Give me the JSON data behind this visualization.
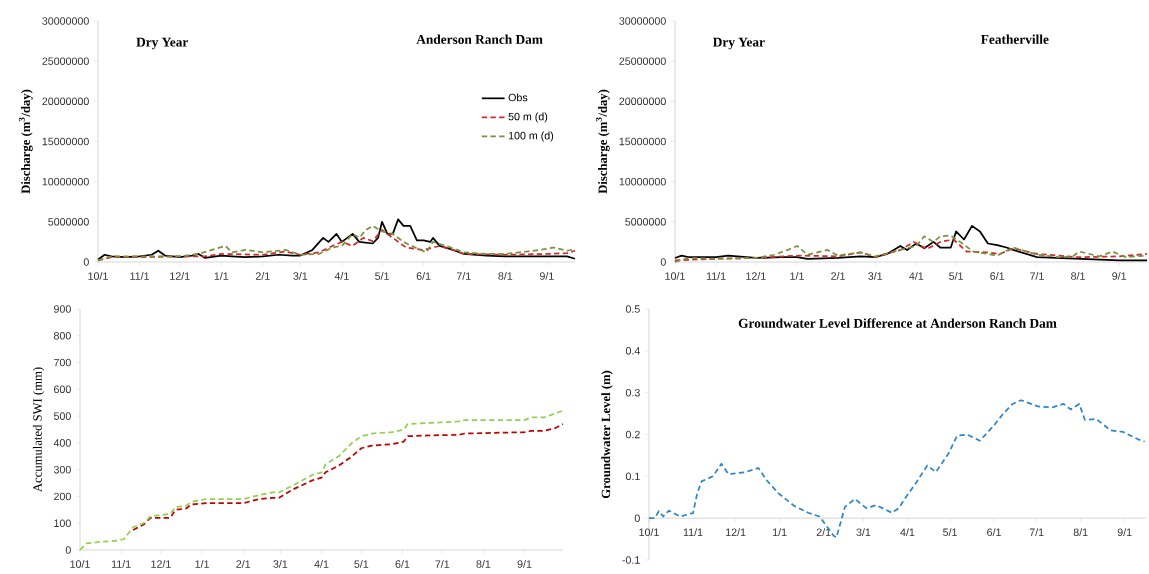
{
  "chart_data": [
    {
      "type": "line",
      "title": "Anderson Ranch Dam",
      "annotations": [
        "Dry Year"
      ],
      "ylabel": "Discharge (m$^{3}$/day)",
      "xlim": [
        "2000-10-01",
        "2001-09-22"
      ],
      "ylim": [
        0,
        30000000
      ],
      "yticks": [
        0,
        5000000,
        10000000,
        15000000,
        20000000,
        25000000,
        30000000
      ],
      "xticks": [
        {
          "value": "2000-10-01",
          "label": "10/1"
        },
        {
          "value": "2000-11-01",
          "label": "11/1"
        },
        {
          "value": "2000-12-01",
          "label": "12/1"
        },
        {
          "value": "2001-01-01",
          "label": "1/1"
        },
        {
          "value": "2001-02-01",
          "label": "2/1"
        },
        {
          "value": "2001-03-01",
          "label": "3/1"
        },
        {
          "value": "2001-04-01",
          "label": "4/1"
        },
        {
          "value": "2001-05-01",
          "label": "5/1"
        },
        {
          "value": "2001-06-01",
          "label": "6/1"
        },
        {
          "value": "2001-07-01",
          "label": "7/1"
        },
        {
          "value": "2001-08-01",
          "label": "8/1"
        },
        {
          "value": "2001-09-01",
          "label": "9/1"
        }
      ],
      "legend": "right",
      "series": [
        {
          "name": "Obs",
          "color": "#000000",
          "line_style": "solid",
          "x": [
            "2000-10-01",
            "2000-10-06",
            "2000-10-11",
            "2000-10-21",
            "2000-11-01",
            "2000-11-10",
            "2000-11-15",
            "2000-11-20",
            "2000-12-01",
            "2000-12-10",
            "2000-12-15",
            "2000-12-20",
            "2001-01-01",
            "2001-01-09",
            "2001-01-19",
            "2001-02-01",
            "2001-02-13",
            "2001-02-23",
            "2001-03-01",
            "2001-03-10",
            "2001-03-18",
            "2001-03-22",
            "2001-03-28",
            "2001-04-01",
            "2001-04-09",
            "2001-04-14",
            "2001-04-24",
            "2001-04-28",
            "2001-05-01",
            "2001-05-05",
            "2001-05-09",
            "2001-05-13",
            "2001-05-17",
            "2001-05-22",
            "2001-05-27",
            "2001-06-01",
            "2001-06-06",
            "2001-06-08",
            "2001-06-13",
            "2001-06-23",
            "2001-07-01",
            "2001-07-18",
            "2001-08-01",
            "2001-08-17",
            "2001-09-01",
            "2001-09-16",
            "2001-09-22"
          ],
          "values": [
            300000,
            900000,
            700000,
            600000,
            700000,
            900000,
            1400000,
            800000,
            600000,
            800000,
            1000000,
            500000,
            800000,
            700000,
            600000,
            700000,
            900000,
            800000,
            800000,
            1500000,
            3000000,
            2500000,
            3500000,
            2500000,
            3500000,
            2500000,
            2300000,
            3000000,
            5000000,
            3500000,
            3500000,
            5300000,
            4500000,
            4500000,
            2700000,
            2700000,
            2500000,
            3000000,
            2000000,
            1500000,
            1000000,
            800000,
            700000,
            700000,
            700000,
            700000,
            400000
          ]
        },
        {
          "name": "50 m (d)",
          "color": "#d42a2a",
          "line_style": "dashed",
          "x": [
            "2000-10-01",
            "2000-10-11",
            "2000-11-01",
            "2000-12-01",
            "2000-12-20",
            "2001-01-01",
            "2001-02-01",
            "2001-02-18",
            "2001-03-01",
            "2001-03-15",
            "2001-03-25",
            "2001-04-01",
            "2001-04-09",
            "2001-04-17",
            "2001-04-24",
            "2001-05-01",
            "2001-05-09",
            "2001-05-19",
            "2001-06-01",
            "2001-06-13",
            "2001-06-23",
            "2001-07-01",
            "2001-08-01",
            "2001-09-01",
            "2001-09-16",
            "2001-09-22"
          ],
          "values": [
            200000,
            600000,
            600000,
            700000,
            700000,
            1000000,
            900000,
            1300000,
            900000,
            1200000,
            2000000,
            2500000,
            2000000,
            3000000,
            2600000,
            4000000,
            3000000,
            1800000,
            1500000,
            2000000,
            1500000,
            1000000,
            900000,
            1000000,
            1100000,
            1400000
          ]
        },
        {
          "name": "100 m (d)",
          "color": "#77933c",
          "line_style": "dashed",
          "x": [
            "2000-10-01",
            "2000-10-11",
            "2000-11-01",
            "2000-12-01",
            "2000-12-15",
            "2000-12-25",
            "2001-01-04",
            "2001-01-09",
            "2001-01-19",
            "2001-02-01",
            "2001-02-18",
            "2001-03-01",
            "2001-03-15",
            "2001-03-25",
            "2001-04-01",
            "2001-04-09",
            "2001-04-14",
            "2001-04-19",
            "2001-04-24",
            "2001-05-01",
            "2001-05-09",
            "2001-05-17",
            "2001-05-27",
            "2001-06-03",
            "2001-06-08",
            "2001-06-18",
            "2001-07-01",
            "2001-07-18",
            "2001-08-01",
            "2001-08-17",
            "2001-08-27",
            "2001-09-06",
            "2001-09-16",
            "2001-09-22"
          ],
          "values": [
            200000,
            700000,
            700000,
            700000,
            1000000,
            1500000,
            2000000,
            1200000,
            1500000,
            1200000,
            1500000,
            900000,
            1000000,
            1800000,
            2000000,
            3500000,
            3000000,
            4000000,
            4500000,
            3800000,
            3500000,
            2500000,
            1700000,
            1200000,
            2500000,
            2000000,
            1200000,
            1000000,
            1000000,
            1300000,
            1500000,
            1800000,
            1400000,
            1600000
          ]
        }
      ]
    },
    {
      "type": "line",
      "title": "Featherville",
      "annotations": [
        "Dry Year"
      ],
      "ylabel": "Discharge (m$^{3}$/day)",
      "xlim": [
        "2000-10-01",
        "2001-09-22"
      ],
      "ylim": [
        0,
        30000000
      ],
      "yticks": [
        0,
        5000000,
        10000000,
        15000000,
        20000000,
        25000000,
        30000000
      ],
      "xticks": [
        {
          "value": "2000-10-01",
          "label": "10/1"
        },
        {
          "value": "2000-11-01",
          "label": "11/1"
        },
        {
          "value": "2000-12-01",
          "label": "12/1"
        },
        {
          "value": "2001-01-01",
          "label": "1/1"
        },
        {
          "value": "2001-02-01",
          "label": "2/1"
        },
        {
          "value": "2001-03-01",
          "label": "3/1"
        },
        {
          "value": "2001-04-01",
          "label": "4/1"
        },
        {
          "value": "2001-05-01",
          "label": "5/1"
        },
        {
          "value": "2001-06-01",
          "label": "6/1"
        },
        {
          "value": "2001-07-01",
          "label": "7/1"
        },
        {
          "value": "2001-08-01",
          "label": "8/1"
        },
        {
          "value": "2001-09-01",
          "label": "9/1"
        }
      ],
      "series": [
        {
          "color": "#000000",
          "line_style": "solid",
          "x": [
            "2000-10-01",
            "2000-10-06",
            "2000-10-11",
            "2000-11-01",
            "2000-11-10",
            "2000-12-01",
            "2000-12-20",
            "2001-01-01",
            "2001-01-09",
            "2001-02-01",
            "2001-02-18",
            "2001-03-01",
            "2001-03-10",
            "2001-03-15",
            "2001-03-20",
            "2001-03-25",
            "2001-04-01",
            "2001-04-07",
            "2001-04-14",
            "2001-04-19",
            "2001-04-27",
            "2001-05-01",
            "2001-05-07",
            "2001-05-13",
            "2001-05-19",
            "2001-05-25",
            "2001-06-01",
            "2001-06-08",
            "2001-06-13",
            "2001-06-23",
            "2001-07-01",
            "2001-08-01",
            "2001-09-01",
            "2001-09-22"
          ],
          "values": [
            500000,
            800000,
            600000,
            600000,
            800000,
            500000,
            600000,
            600000,
            400000,
            500000,
            700000,
            600000,
            1000000,
            1500000,
            2000000,
            1500000,
            2300000,
            1700000,
            2500000,
            1800000,
            1800000,
            3800000,
            2800000,
            4500000,
            3800000,
            2300000,
            2100000,
            1800000,
            1500000,
            1000000,
            600000,
            400000,
            200000,
            200000
          ]
        },
        {
          "color": "#d42a2a",
          "line_style": "dashed",
          "x": [
            "2000-10-01",
            "2000-11-01",
            "2000-12-01",
            "2001-01-01",
            "2001-02-01",
            "2001-02-18",
            "2001-03-01",
            "2001-03-20",
            "2001-03-30",
            "2001-04-09",
            "2001-04-19",
            "2001-04-29",
            "2001-05-09",
            "2001-05-24",
            "2001-06-03",
            "2001-06-13",
            "2001-07-01",
            "2001-08-01",
            "2001-09-01",
            "2001-09-22"
          ],
          "values": [
            200000,
            400000,
            500000,
            800000,
            700000,
            1200000,
            600000,
            1500000,
            2500000,
            1600000,
            2500000,
            2800000,
            1300000,
            1200000,
            1000000,
            1700000,
            1000000,
            600000,
            700000,
            1000000
          ]
        },
        {
          "color": "#77933c",
          "line_style": "dashed",
          "x": [
            "2000-10-01",
            "2000-10-11",
            "2000-11-01",
            "2000-12-01",
            "2000-12-15",
            "2000-12-25",
            "2001-01-01",
            "2001-01-09",
            "2001-01-24",
            "2001-02-01",
            "2001-02-18",
            "2001-03-01",
            "2001-03-20",
            "2001-04-01",
            "2001-04-07",
            "2001-04-14",
            "2001-04-19",
            "2001-04-27",
            "2001-05-04",
            "2001-05-14",
            "2001-06-01",
            "2001-06-13",
            "2001-06-23",
            "2001-07-01",
            "2001-07-18",
            "2001-07-28",
            "2001-08-02",
            "2001-08-17",
            "2001-08-27",
            "2001-09-06",
            "2001-09-22"
          ],
          "values": [
            0,
            500000,
            400000,
            500000,
            900000,
            1500000,
            2000000,
            900000,
            1500000,
            800000,
            1200000,
            700000,
            1500000,
            2000000,
            3200000,
            2500000,
            3200000,
            3300000,
            2500000,
            1300000,
            800000,
            1800000,
            1300000,
            900000,
            600000,
            700000,
            1300000,
            700000,
            1300000,
            600000,
            800000
          ]
        }
      ]
    },
    {
      "type": "line",
      "ylabel": "Accumulated SWI (mm)",
      "xlim": [
        "2000-10-01",
        "2001-09-30"
      ],
      "ylim": [
        0,
        900
      ],
      "yticks": [
        0,
        100,
        200,
        300,
        400,
        500,
        600,
        700,
        800,
        900
      ],
      "xticks": [
        {
          "value": "2000-10-01",
          "label": "10/1"
        },
        {
          "value": "2000-11-01",
          "label": "11/1"
        },
        {
          "value": "2000-12-01",
          "label": "12/1"
        },
        {
          "value": "2001-01-01",
          "label": "1/1"
        },
        {
          "value": "2001-02-01",
          "label": "2/1"
        },
        {
          "value": "2001-03-01",
          "label": "3/1"
        },
        {
          "value": "2001-04-01",
          "label": "4/1"
        },
        {
          "value": "2001-05-01",
          "label": "5/1"
        },
        {
          "value": "2001-06-01",
          "label": "6/1"
        },
        {
          "value": "2001-07-01",
          "label": "7/1"
        },
        {
          "value": "2001-08-01",
          "label": "8/1"
        },
        {
          "value": "2001-09-01",
          "label": "9/1"
        }
      ],
      "series": [
        {
          "color": "#c00000",
          "line_style": "dashed",
          "x": [
            "2000-11-10",
            "2000-11-18",
            "2000-11-23",
            "2000-11-30",
            "2000-12-08",
            "2000-12-12",
            "2000-12-20",
            "2000-12-24",
            "2001-01-04",
            "2001-02-01",
            "2001-02-13",
            "2001-02-23",
            "2001-02-28",
            "2001-03-10",
            "2001-03-25",
            "2001-04-01",
            "2001-04-04",
            "2001-04-14",
            "2001-04-24",
            "2001-05-01",
            "2001-05-09",
            "2001-05-24",
            "2001-05-29",
            "2001-06-02",
            "2001-06-05",
            "2001-06-23",
            "2001-07-13",
            "2001-07-18",
            "2001-09-01",
            "2001-09-06",
            "2001-09-16",
            "2001-09-24",
            "2001-09-30"
          ],
          "values": [
            75,
            95,
            120,
            120,
            120,
            150,
            155,
            170,
            175,
            175,
            190,
            195,
            195,
            225,
            260,
            270,
            290,
            315,
            350,
            380,
            390,
            395,
            400,
            405,
            425,
            428,
            430,
            435,
            440,
            445,
            445,
            455,
            470
          ]
        },
        {
          "color": "#92d050",
          "line_style": "dashed",
          "x": [
            "2000-10-01",
            "2000-10-06",
            "2000-10-16",
            "2000-10-29",
            "2000-11-03",
            "2000-11-10",
            "2000-11-18",
            "2000-11-23",
            "2000-11-30",
            "2000-12-08",
            "2000-12-12",
            "2000-12-20",
            "2000-12-24",
            "2001-01-04",
            "2001-02-01",
            "2001-02-13",
            "2001-02-23",
            "2001-02-28",
            "2001-03-10",
            "2001-03-25",
            "2001-04-01",
            "2001-04-04",
            "2001-04-14",
            "2001-04-24",
            "2001-05-01",
            "2001-05-09",
            "2001-05-24",
            "2001-05-29",
            "2001-06-02",
            "2001-06-05",
            "2001-06-23",
            "2001-07-13",
            "2001-07-18",
            "2001-09-01",
            "2001-09-06",
            "2001-09-16",
            "2001-09-24",
            "2001-09-30"
          ],
          "values": [
            0,
            25,
            30,
            35,
            40,
            85,
            100,
            125,
            130,
            135,
            160,
            165,
            180,
            190,
            190,
            205,
            215,
            215,
            240,
            280,
            290,
            320,
            350,
            400,
            425,
            435,
            440,
            445,
            450,
            470,
            475,
            480,
            485,
            485,
            495,
            495,
            510,
            520
          ]
        }
      ]
    },
    {
      "type": "line",
      "title": "Groundwater Level  Difference at Anderson Ranch Dam",
      "ylabel": "Groundwater Level (m)",
      "xlim": [
        "2000-10-01",
        "2001-09-16"
      ],
      "ylim": [
        -0.1,
        0.5
      ],
      "yticks": [
        -0.1,
        0,
        0.1,
        0.2,
        0.3,
        0.4,
        0.5
      ],
      "xticks": [
        {
          "value": "2000-10-01",
          "label": "10/1"
        },
        {
          "value": "2000-11-01",
          "label": "11/1"
        },
        {
          "value": "2000-12-01",
          "label": "12/1"
        },
        {
          "value": "2001-01-01",
          "label": "1/1"
        },
        {
          "value": "2001-02-01",
          "label": "2/1"
        },
        {
          "value": "2001-03-01",
          "label": "3/1"
        },
        {
          "value": "2001-04-01",
          "label": "4/1"
        },
        {
          "value": "2001-05-01",
          "label": "5/1"
        },
        {
          "value": "2001-06-01",
          "label": "6/1"
        },
        {
          "value": "2001-07-01",
          "label": "7/1"
        },
        {
          "value": "2001-08-01",
          "label": "8/1"
        },
        {
          "value": "2001-09-01",
          "label": "9/1"
        }
      ],
      "series": [
        {
          "color": "#2e86c8",
          "line_style": "dashed",
          "x": [
            "2000-10-01",
            "2000-10-05",
            "2000-10-08",
            "2000-10-11",
            "2000-10-15",
            "2000-10-23",
            "2000-11-01",
            "2000-11-04",
            "2000-11-07",
            "2000-11-15",
            "2000-11-21",
            "2000-11-26",
            "2000-12-08",
            "2000-12-17",
            "2000-12-23",
            "2000-12-31",
            "2001-01-11",
            "2001-01-21",
            "2001-01-29",
            "2001-02-08",
            "2001-02-10",
            "2001-02-16",
            "2001-02-23",
            "2001-03-03",
            "2001-03-10",
            "2001-03-21",
            "2001-03-26",
            "2001-03-30",
            "2001-04-07",
            "2001-04-15",
            "2001-04-21",
            "2001-04-30",
            "2001-05-06",
            "2001-05-13",
            "2001-05-22",
            "2001-06-01",
            "2001-06-07",
            "2001-06-14",
            "2001-06-20",
            "2001-07-02",
            "2001-07-12",
            "2001-07-20",
            "2001-07-25",
            "2001-07-31",
            "2001-08-04",
            "2001-08-12",
            "2001-08-22",
            "2001-08-31",
            "2001-09-10",
            "2001-09-15"
          ],
          "values": [
            0,
            0,
            0.017,
            0.004,
            0.018,
            0.004,
            0.012,
            0.06,
            0.088,
            0.1,
            0.13,
            0.105,
            0.11,
            0.12,
            0.09,
            0.06,
            0.03,
            0.013,
            0.004,
            -0.042,
            -0.046,
            0.027,
            0.046,
            0.024,
            0.031,
            0.013,
            0.024,
            0.046,
            0.084,
            0.126,
            0.11,
            0.155,
            0.197,
            0.2,
            0.185,
            0.222,
            0.248,
            0.273,
            0.282,
            0.267,
            0.265,
            0.273,
            0.26,
            0.273,
            0.235,
            0.237,
            0.21,
            0.206,
            0.189,
            0.183
          ]
        }
      ]
    }
  ]
}
